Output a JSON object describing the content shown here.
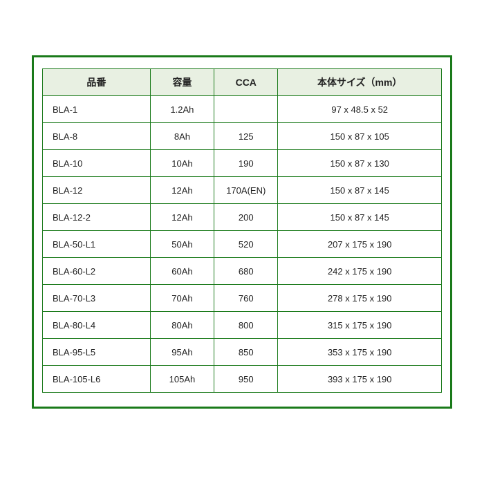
{
  "table": {
    "columns": [
      "品番",
      "容量",
      "CCA",
      "本体サイズ（mm）"
    ],
    "rows": [
      [
        "BLA-1",
        "1.2Ah",
        "",
        "97 x 48.5 x 52"
      ],
      [
        "BLA-8",
        "8Ah",
        "125",
        "150 x 87 x 105"
      ],
      [
        "BLA-10",
        "10Ah",
        "190",
        "150 x 87 x 130"
      ],
      [
        "BLA-12",
        "12Ah",
        "170A(EN)",
        "150 x 87 x 145"
      ],
      [
        "BLA-12-2",
        "12Ah",
        "200",
        "150 x 87 x 145"
      ],
      [
        "BLA-50-L1",
        "50Ah",
        "520",
        "207 x 175 x 190"
      ],
      [
        "BLA-60-L2",
        "60Ah",
        "680",
        "242 x 175 x 190"
      ],
      [
        "BLA-70-L3",
        "70Ah",
        "760",
        "278 x 175 x 190"
      ],
      [
        "BLA-80-L4",
        "80Ah",
        "800",
        "315 x 175 x 190"
      ],
      [
        "BLA-95-L5",
        "95Ah",
        "850",
        "353 x 175 x 190"
      ],
      [
        "BLA-105-L6",
        "105Ah",
        "950",
        "393 x 175 x 190"
      ]
    ],
    "border_color": "#1a7a1a",
    "header_bg": "#e8f0e2",
    "font_size_header": 14,
    "font_size_cell": 13,
    "column_widths_pct": [
      27,
      16,
      16,
      41
    ],
    "column_align": [
      "left",
      "center",
      "center",
      "center"
    ]
  }
}
